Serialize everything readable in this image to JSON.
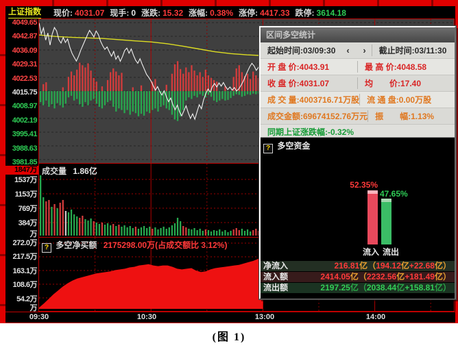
{
  "info_bar": {
    "index_name": "上证指数",
    "fields": [
      {
        "label": "现价:",
        "value": "4031.07",
        "color": "red"
      },
      {
        "label": "现手:",
        "value": "0",
        "color": "white"
      },
      {
        "label": "涨跌:",
        "value": "15.32",
        "color": "red"
      },
      {
        "label": "涨幅:",
        "value": "0.38%",
        "color": "red"
      },
      {
        "label": "涨停:",
        "value": "4417.33",
        "color": "red"
      },
      {
        "label": "跌停:",
        "value": "3614.18",
        "color": "green"
      }
    ]
  },
  "price_axis_ticks": [
    {
      "t": "4049.65",
      "c": "red"
    },
    {
      "t": "4042.87",
      "c": "red"
    },
    {
      "t": "4036.09",
      "c": "red"
    },
    {
      "t": "4029.31",
      "c": "red"
    },
    {
      "t": "4022.53",
      "c": "red"
    },
    {
      "t": "4015.75",
      "c": "white"
    },
    {
      "t": "4008.97",
      "c": "green"
    },
    {
      "t": "4002.19",
      "c": "green"
    },
    {
      "t": "3995.41",
      "c": "green"
    },
    {
      "t": "3988.63",
      "c": "green"
    },
    {
      "t": "3981.85",
      "c": "green"
    }
  ],
  "volume_panel": {
    "title": "成交量",
    "value": "1.86亿",
    "ticks": [
      {
        "t": "1847万",
        "c": "hl"
      },
      {
        "t": "1537万",
        "c": "white"
      },
      {
        "t": "1153万",
        "c": "white"
      },
      {
        "t": "769万",
        "c": "white"
      },
      {
        "t": "384万",
        "c": "white"
      },
      {
        "t": "万",
        "c": "white"
      }
    ]
  },
  "net_panel": {
    "title": "多空净买额",
    "value": "2175298.00万(占成交额比 3.12%)",
    "ticks": [
      {
        "t": "272.0万",
        "c": "white"
      },
      {
        "t": "217.5万",
        "c": "white"
      },
      {
        "t": "163.1万",
        "c": "white"
      },
      {
        "t": "108.6万",
        "c": "white"
      },
      {
        "t": "54.2万",
        "c": "white"
      },
      {
        "t": "万",
        "c": "white"
      }
    ]
  },
  "stats_panel": {
    "title": "区间多空统计",
    "rows": [
      {
        "cells": [
          {
            "label": "起始时间:",
            "value": "03/09:30",
            "color": "dark",
            "arrows": "‹ ›"
          },
          {
            "label": "截止时间:",
            "value": "03/11:30",
            "color": "dark"
          }
        ]
      },
      {
        "cells": [
          {
            "label": "开 盘 价:",
            "value": "4043.91",
            "color": "red"
          },
          {
            "label": "最 高 价:",
            "value": "4048.58",
            "color": "red"
          }
        ]
      },
      {
        "cells": [
          {
            "label": "收 盘 价:",
            "value": "4031.07",
            "color": "red"
          },
          {
            "label": "均　　价:",
            "value": "17.40",
            "color": "red"
          }
        ]
      },
      {
        "cells": [
          {
            "label": "成 交 量:",
            "value": "4003716.71万股",
            "color": "orange"
          },
          {
            "label": "流 通 盘:",
            "value": "0.00万股",
            "color": "orange"
          }
        ]
      },
      {
        "cells": [
          {
            "label": "成交金额:",
            "value": "69674152.76万元",
            "color": "orange"
          },
          {
            "label": "振　　幅:",
            "value": "1.13%",
            "color": "orange"
          }
        ]
      }
    ],
    "period": {
      "label": "同期上证涨跌幅:",
      "value": "-0.32%"
    },
    "funds": {
      "header": "多空资金",
      "rows": [
        {
          "label": "净流入",
          "bg": "g",
          "segments": [
            [
              "216.81",
              "r"
            ],
            [
              "亿",
              "o"
            ],
            [
              "（",
              "o"
            ],
            [
              "194.12",
              "r"
            ],
            [
              "亿",
              "o"
            ],
            [
              "+22.68",
              "r"
            ],
            [
              "亿",
              "o"
            ],
            [
              "）",
              "o"
            ]
          ]
        },
        {
          "label": "流入额",
          "bg": "m",
          "segments": [
            [
              "2414.05",
              "r"
            ],
            [
              "亿",
              "o"
            ],
            [
              "（",
              "o"
            ],
            [
              "2232.56",
              "r"
            ],
            [
              "亿",
              "o"
            ],
            [
              "+181.49",
              "r"
            ],
            [
              "亿",
              "o"
            ],
            [
              "）",
              "o"
            ]
          ]
        },
        {
          "label": "流出额",
          "bg": "g2",
          "segments": [
            [
              "2197.25",
              "gr"
            ],
            [
              "亿",
              "gr2"
            ],
            [
              "（",
              "gr2"
            ],
            [
              "2038.44",
              "gr"
            ],
            [
              "亿",
              "gr2"
            ],
            [
              "+158.81",
              "gr"
            ],
            [
              "亿",
              "gr2"
            ],
            [
              "）",
              "gr2"
            ]
          ]
        }
      ]
    }
  },
  "caption": "(图 1)",
  "chart_data": [
    {
      "id": "price_intraday",
      "type": "line",
      "title": "上证指数分时",
      "prev_close": 4015.75,
      "y_ticks": [
        4049.65,
        4042.87,
        4036.09,
        4029.31,
        4022.53,
        4015.75,
        4008.97,
        4002.19,
        3995.41,
        3988.63,
        3981.85
      ],
      "time_axis": {
        "labels": [
          "09:30",
          "10:30",
          "13:00",
          "14:00"
        ],
        "minutes": [
          0,
          60,
          120,
          180
        ]
      },
      "session_minutes": 120,
      "series": [
        {
          "name": "price",
          "color": "#f0f0f0",
          "values": [
            4049.5,
            4044,
            4047,
            4041,
            4044.5,
            4038.5,
            4044,
            4047.2,
            4045.5,
            4041.2,
            4039.5,
            4042.3,
            4039.8,
            4041.5,
            4037.5,
            4034.5,
            4032.5,
            4030.6,
            4033,
            4036,
            4038.5,
            4041,
            4043.5,
            4045.8,
            4044.2,
            4042.5,
            4045.5,
            4043.8,
            4040.5,
            4038.2,
            4036.4,
            4037.6,
            4035.2,
            4033,
            4035.4,
            4031.5,
            4033.2,
            4030.5,
            4032.8,
            4035.8,
            4037,
            4034.5,
            4036.6,
            4033.5,
            4031,
            4029.5,
            4031.8,
            4029,
            4026.5,
            4024,
            4022.5,
            4020.8,
            4018.5,
            4016.2,
            4018,
            4015.5,
            4013.8,
            4015.9,
            4013,
            4010.5,
            4012.3,
            4009,
            4006.5,
            4008.8,
            4005.5,
            4003.5,
            4006,
            4008.5,
            4005,
            4002.2,
            4004.5,
            4001.8,
            4005.5,
            4009,
            4007,
            4011.5,
            4014.5,
            4016.8,
            4015.2,
            4018,
            4019.5,
            4017.8,
            4019.8,
            4018.2,
            4020,
            4018,
            4016.5,
            4017.8,
            4016.2,
            4017.5,
            4015.8,
            4016.8,
            4018.5,
            4020.5,
            4023,
            4025.5,
            4027.8,
            4029.5,
            4028.2,
            4026,
            4027.5,
            4029.8,
            4031.1
          ]
        },
        {
          "name": "avg",
          "color": "#dddd22",
          "values": [
            4043.5,
            4042.8,
            4042.4,
            4042.1,
            4041.8,
            4041.2,
            4040.6,
            4040.1,
            4039.2,
            4038,
            4036.6,
            4035.2,
            4034.3,
            4033.7,
            4033.3
          ]
        }
      ],
      "delta_bars": {
        "pos_color": "#d23c3c",
        "neg_color": "#28a84e",
        "pos": [
          0,
          0.22,
          0.28,
          0,
          0,
          0,
          0,
          0,
          0.12,
          0,
          0.45,
          0.62,
          0.5,
          0.68,
          0.9,
          0.82,
          0.75,
          0.88,
          0.65,
          0.42,
          0.3,
          0,
          0.15,
          0,
          0.35,
          0.6,
          0.72,
          0.62,
          0.5,
          0.58,
          0,
          0,
          0,
          0.12,
          0,
          0,
          0.18,
          0,
          0,
          0,
          0.3,
          0.38,
          0,
          0,
          0,
          0.2,
          0,
          0.55,
          0.85,
          0.95,
          0.7,
          0.55,
          0.75,
          0.6,
          0.82,
          0.65,
          0.5,
          0.6,
          0.45,
          0.68,
          0.5,
          0.42,
          0.35,
          0.3,
          0,
          0,
          0.15,
          0,
          0,
          0.45,
          0.72,
          0.82,
          0.6,
          0.48,
          0.55,
          0.38,
          0.62,
          0.5,
          0.42,
          0.55
        ],
        "neg": [
          0.35,
          0.45,
          0.3,
          0.5,
          0.42,
          0.55,
          0.38,
          0.45,
          0.52,
          0.4,
          0.2,
          0.15,
          0.3,
          0.25,
          0.42,
          0.5,
          0.35,
          0.45,
          0.3,
          0.25,
          0.4,
          0.5,
          0.55,
          0.45,
          0.35,
          0.3,
          0.5,
          0.65,
          0.55,
          0.6,
          0.7,
          0.6,
          0.75,
          0.65,
          0.7,
          0.8,
          0.72,
          0.78,
          0.65,
          0.7,
          0.6,
          0.55,
          0.65,
          0.5,
          0.45,
          0.55,
          0.6,
          0.75,
          0.9,
          0.95,
          0.8,
          0.6,
          0.3,
          0.2,
          0.25,
          0.15,
          0.2,
          0.1,
          0.15,
          0.2,
          0.12,
          0.18,
          0.3,
          0.35,
          0.3,
          0.25,
          0.3,
          0.28,
          0.22,
          0.15,
          0.1,
          0.12,
          0.18,
          0.15,
          0.1,
          0.12,
          0.08,
          0.1,
          0.08,
          0.1
        ]
      }
    },
    {
      "id": "volume",
      "type": "bar",
      "title": "成交量 1.86亿",
      "max_value_wan": 1847,
      "y_tick_labels": [
        "1847万",
        "1537万",
        "1153万",
        "769万",
        "384万",
        "万"
      ],
      "bar_colors": "ggrrgrgrrwggggrrgggrggrgggrgrgggggrgggggrggggggggggrrggggggrgggggggggrrrggggrrrr",
      "values_frac": [
        0.88,
        0.56,
        0.5,
        0.52,
        0.42,
        0.46,
        0.4,
        0.48,
        0.52,
        0.36,
        0.34,
        0.38,
        0.31,
        0.28,
        0.26,
        0.29,
        0.24,
        0.22,
        0.25,
        0.21,
        0.19,
        0.17,
        0.19,
        0.16,
        0.18,
        0.15,
        0.17,
        0.14,
        0.16,
        0.13,
        0.15,
        0.12,
        0.14,
        0.11,
        0.13,
        0.1,
        0.12,
        0.14,
        0.11,
        0.13,
        0.1,
        0.12,
        0.09,
        0.11,
        0.13,
        0.1,
        0.12,
        0.15,
        0.18,
        0.26,
        0.21,
        0.14,
        0.12,
        0.1,
        0.09,
        0.11,
        0.08,
        0.1,
        0.07,
        0.09,
        0.08,
        0.06,
        0.08,
        0.07,
        0.09,
        0.06,
        0.08,
        0.05,
        0.07,
        0.09,
        0.11,
        0.08,
        0.1,
        0.07,
        0.09,
        0.06,
        0.08,
        0.1,
        0.07,
        0.09
      ]
    },
    {
      "id": "net_buy",
      "type": "area",
      "title": "多空净买额 2175298.00万(占成交额比 3.12%)",
      "max_value_wan": 272.0,
      "fill_color": "#ee1111",
      "y_tick_labels": [
        "272.0万",
        "217.5万",
        "163.1万",
        "108.6万",
        "54.2万",
        "万"
      ],
      "values_frac": [
        0.02,
        0.08,
        0.15,
        0.22,
        0.28,
        0.34,
        0.39,
        0.43,
        0.46,
        0.48,
        0.5,
        0.52,
        0.54,
        0.55,
        0.56,
        0.57,
        0.59,
        0.6,
        0.61,
        0.63,
        0.64,
        0.66,
        0.67,
        0.68,
        0.66,
        0.65,
        0.66,
        0.66,
        0.64,
        0.61,
        0.6,
        0.61,
        0.62,
        0.58,
        0.56,
        0.57,
        0.6,
        0.62,
        0.63,
        0.64,
        0.65,
        0.66,
        0.67,
        0.69,
        0.71,
        0.73,
        0.76,
        0.8
      ]
    },
    {
      "id": "funds_in_out",
      "type": "bar",
      "title": "多空资金",
      "categories": [
        "流入",
        "流出"
      ],
      "values": [
        52.35,
        47.65
      ],
      "value_labels": [
        "52.35%",
        "47.65%"
      ],
      "colors": [
        "#e8495c",
        "#3bbd66"
      ],
      "unit": "%"
    }
  ]
}
